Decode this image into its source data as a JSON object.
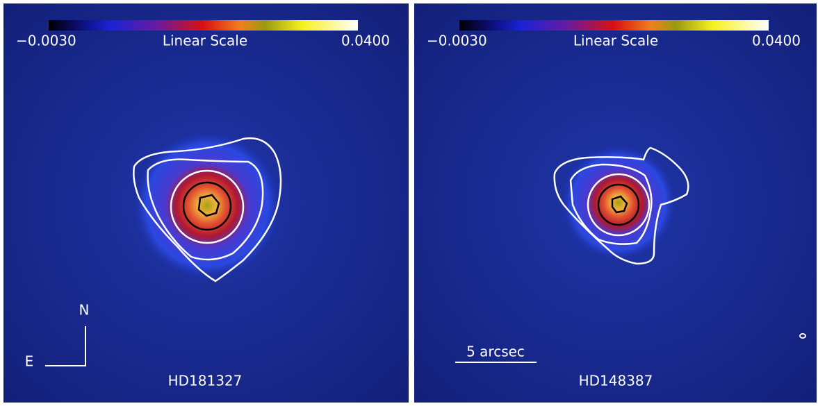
{
  "panels": [
    {
      "colorbar": {
        "min_label": "−0.0030",
        "scale_label": "Linear Scale",
        "max_label": "0.0400"
      },
      "target": "HD181327",
      "compass": {
        "north": "N",
        "east": "E"
      }
    },
    {
      "colorbar": {
        "min_label": "−0.0030",
        "scale_label": "Linear Scale",
        "max_label": "0.0400"
      },
      "target": "HD148387",
      "scale_bar": "5 arcsec"
    }
  ]
}
